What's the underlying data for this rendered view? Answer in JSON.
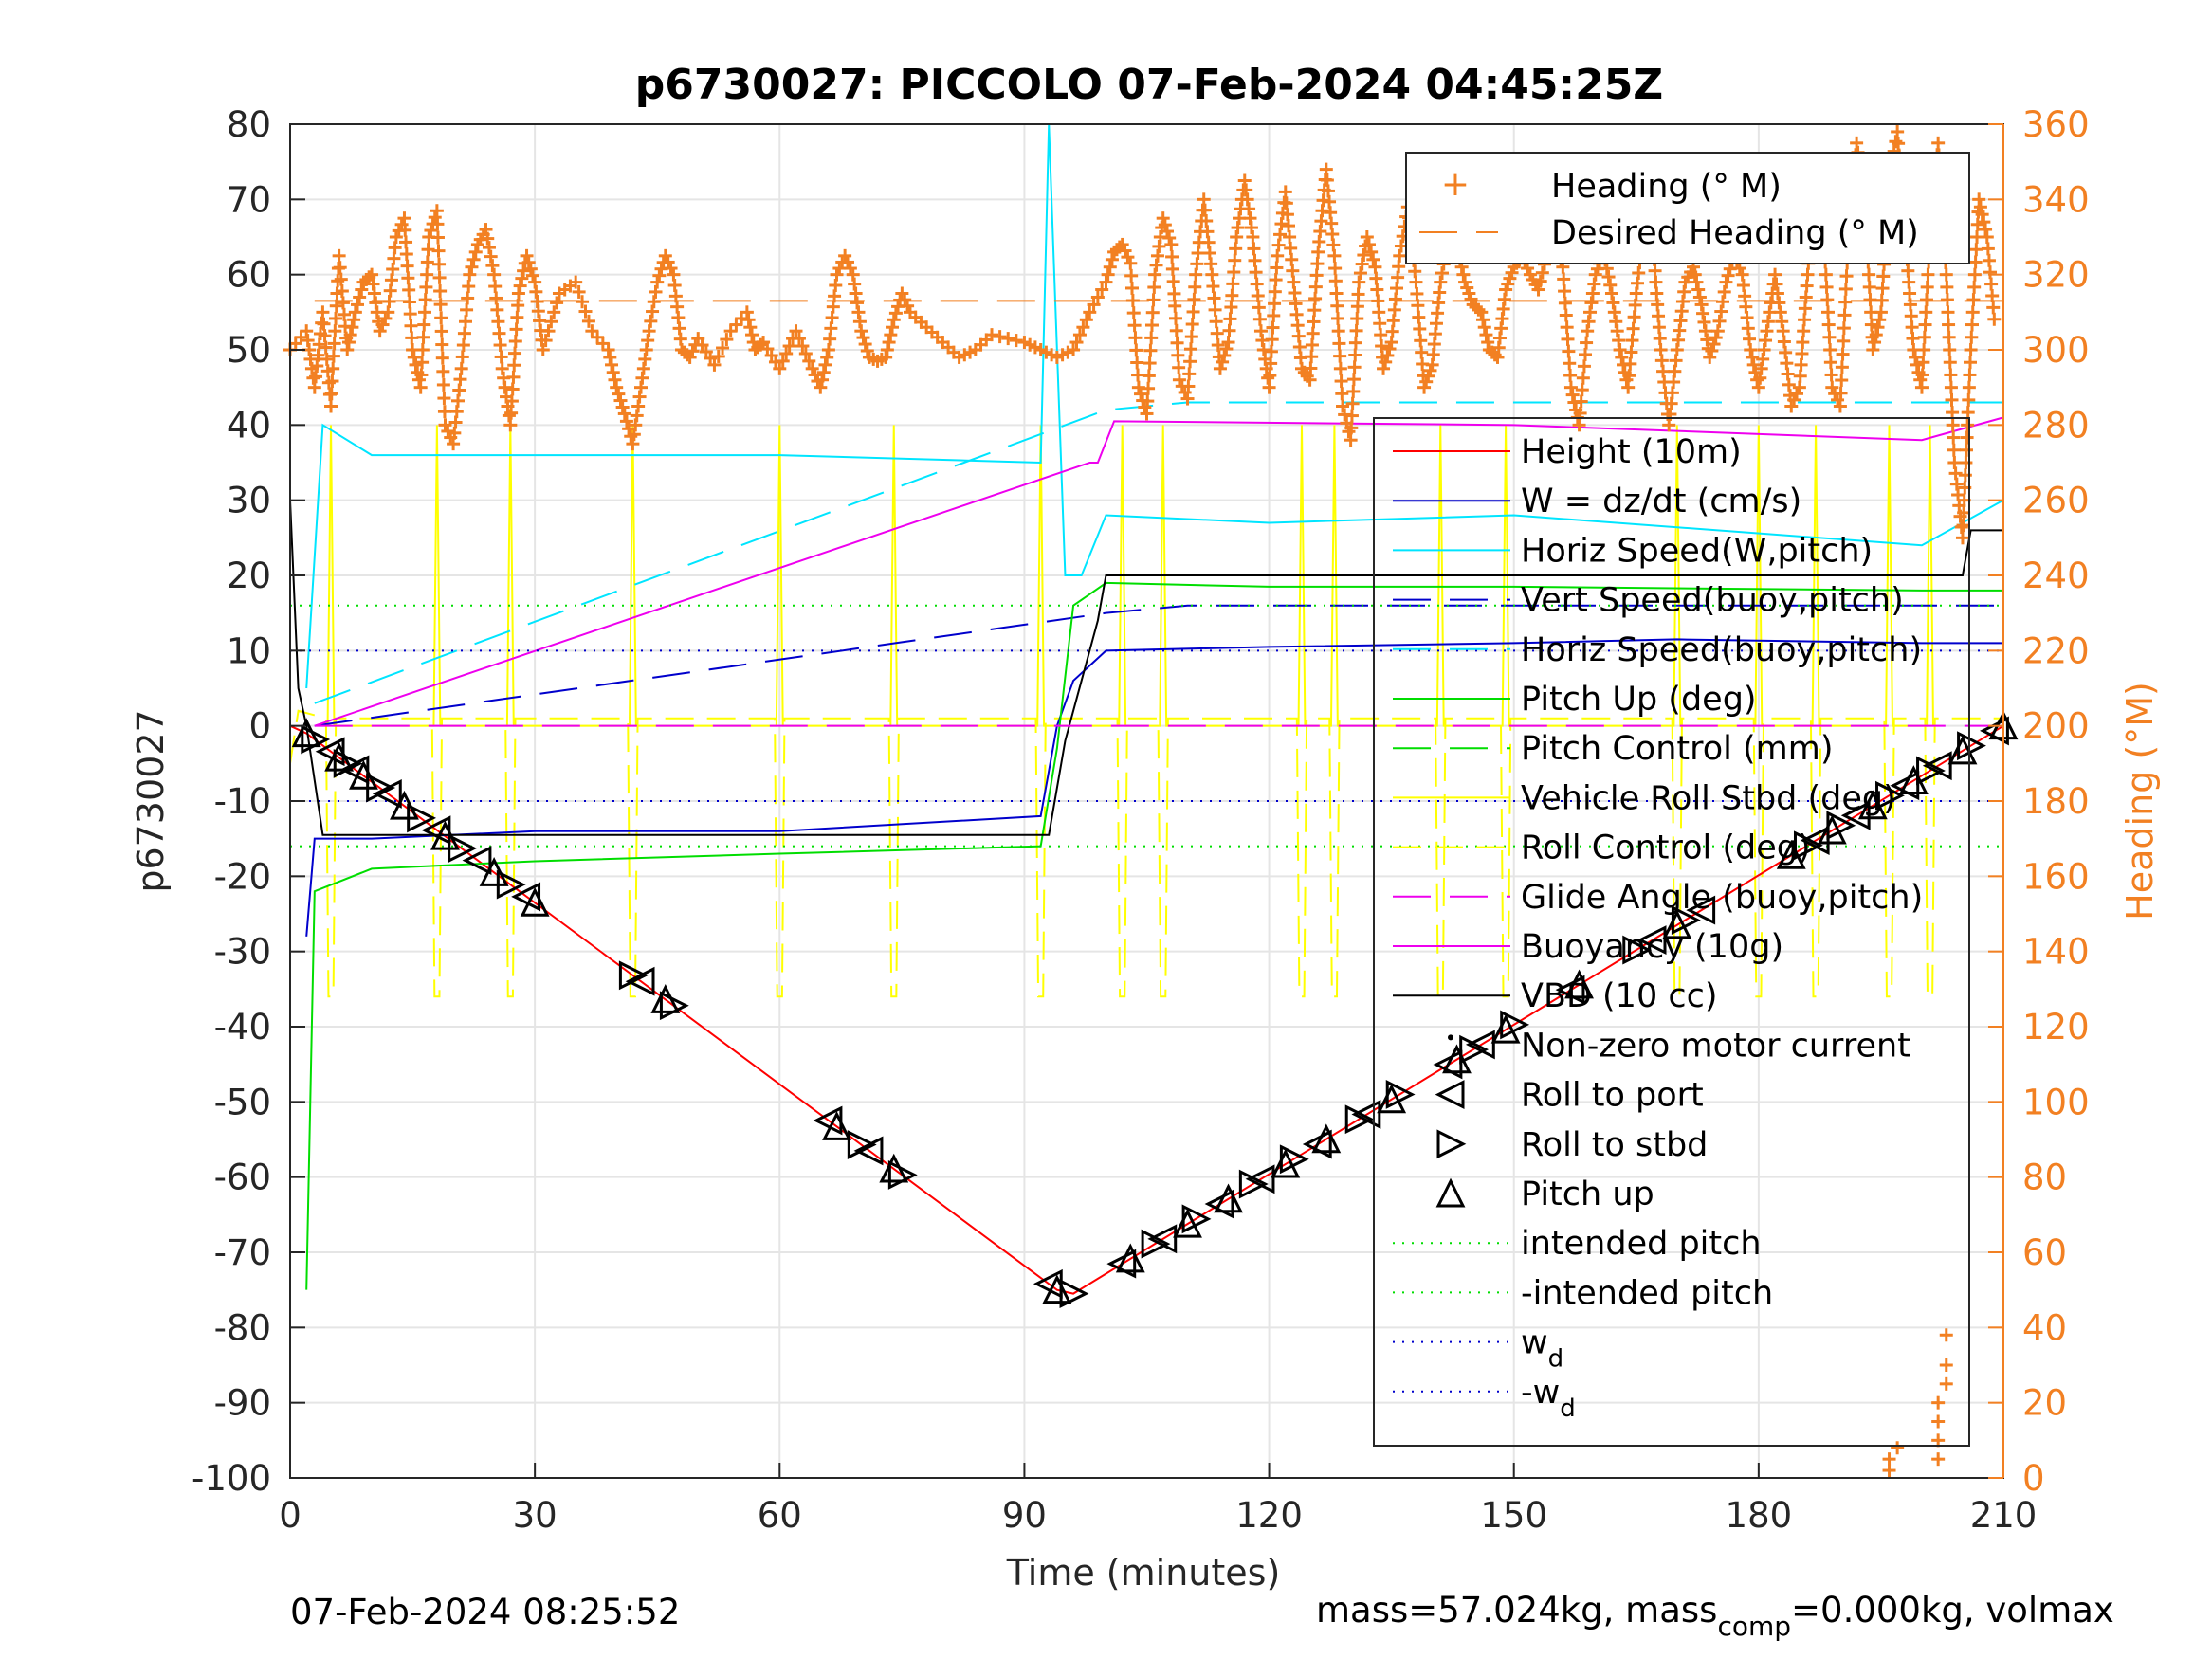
{
  "chart_data": {
    "type": "line",
    "title": "p6730027: PICCOLO 07-Feb-2024 04:45:25Z",
    "xlabel": "Time (minutes)",
    "ylabel": "p6730027",
    "y2label": "Heading (°M)",
    "xlim": [
      0,
      210
    ],
    "ylim": [
      -100,
      80
    ],
    "y2lim": [
      0,
      360
    ],
    "xticks": [
      "0",
      "30",
      "60",
      "90",
      "120",
      "150",
      "180",
      "210"
    ],
    "yticks": [
      "80",
      "70",
      "60",
      "50",
      "40",
      "30",
      "20",
      "10",
      "0",
      "-10",
      "-20",
      "-30",
      "-40",
      "-50",
      "-60",
      "-70",
      "-80",
      "-90",
      "-100"
    ],
    "y2ticks": [
      "360",
      "340",
      "320",
      "300",
      "280",
      "260",
      "240",
      "220",
      "200",
      "180",
      "160",
      "140",
      "120",
      "100",
      "80",
      "60",
      "40",
      "20",
      "0"
    ],
    "grid": true,
    "legend_heading": [
      "Heading (° M)",
      "Desired Heading (° M)"
    ],
    "legend_main": [
      "Height (10m)",
      "W = dz/dt (cm/s)",
      "Horiz Speed(W,pitch)",
      "Vert Speed(buoy,pitch)",
      "Horiz Speed(buoy,pitch)",
      "Pitch Up (deg)",
      "Pitch Control (mm)",
      "Vehicle Roll Stbd (deg)",
      "Roll Control (deg)",
      "Glide Angle (buoy,pitch)",
      "Buoyancy (10g)",
      "VBD (10 cc)",
      "Non-zero motor current",
      "Roll to port",
      "Roll to stbd",
      "Pitch up",
      "intended pitch",
      "-intended pitch",
      "w_d",
      "-w_d"
    ],
    "series": [
      {
        "name": "Height (10m)",
        "color": "#ff0000",
        "x": [
          0,
          2,
          94,
          96,
          210
        ],
        "y": [
          0,
          -1,
          -75,
          -75.5,
          0
        ]
      },
      {
        "name": "W = dz/dt (cm/s)",
        "color": "#0000cc",
        "x": [
          2,
          3,
          10,
          30,
          60,
          92,
          94,
          96,
          100,
          120,
          150,
          170,
          200,
          210
        ],
        "y": [
          -28,
          -15,
          -15,
          -14,
          -14,
          -12,
          0,
          6,
          10,
          10.5,
          11,
          11.5,
          11,
          11
        ]
      },
      {
        "name": "Horiz Speed(W,pitch)",
        "color": "#00e5ff",
        "x": [
          2,
          4,
          10,
          30,
          60,
          92,
          93,
          95,
          97,
          100,
          120,
          150,
          200,
          210
        ],
        "y": [
          5,
          40,
          36,
          36,
          36,
          35,
          80,
          20,
          20,
          28,
          27,
          28,
          24,
          30
        ]
      },
      {
        "name": "Vert Speed(buoy,pitch)",
        "color": "#0000cc",
        "dash": "40,20",
        "x": [
          3,
          100,
          110,
          150,
          205,
          210
        ],
        "y": [
          0,
          15,
          16,
          16,
          16,
          16
        ]
      },
      {
        "name": "Horiz Speed(buoy,pitch)",
        "color": "#00e5ff",
        "dash": "40,20",
        "x": [
          3,
          100,
          110,
          150,
          205,
          210
        ],
        "y": [
          3,
          42,
          43,
          43,
          43,
          43
        ]
      },
      {
        "name": "Pitch Up (deg)",
        "color": "#00dd00",
        "x": [
          2,
          3,
          10,
          30,
          60,
          92,
          94,
          96,
          100,
          120,
          150,
          200,
          210
        ],
        "y": [
          -75,
          -22,
          -19,
          -18,
          -17,
          -16,
          -3,
          16,
          19,
          18.5,
          18.5,
          18,
          18
        ]
      },
      {
        "name": "Buoyancy (10g)",
        "color": "#ee00ee",
        "x": [
          3,
          98,
          99,
          101,
          150,
          200,
          210
        ],
        "y": [
          0,
          35,
          35,
          40.5,
          40,
          38,
          41
        ]
      },
      {
        "name": "VBD (10 cc)",
        "color": "#000000",
        "x": [
          0,
          1,
          2,
          4,
          90,
          93,
          95,
          99,
          100,
          170,
          205,
          206,
          210
        ],
        "y": [
          30,
          5,
          0,
          -14.5,
          -14.5,
          -14.5,
          -2,
          14,
          20,
          20,
          20,
          26,
          26
        ]
      },
      {
        "name": "Glide Angle (buoy,pitch)",
        "color": "#ee00ee",
        "dash": "40,20",
        "x": [
          3,
          210
        ],
        "y": [
          0,
          0
        ]
      },
      {
        "name": "intended pitch",
        "color": "#00dd00",
        "dash": "2,8",
        "x": [
          0,
          210
        ],
        "y": [
          16,
          16
        ]
      },
      {
        "name": "-intended pitch",
        "color": "#00dd00",
        "dash": "2,8",
        "x": [
          0,
          210
        ],
        "y": [
          -16,
          -16
        ]
      },
      {
        "name": "w_d",
        "color": "#0000cc",
        "dash": "2,8",
        "x": [
          0,
          210
        ],
        "y": [
          10,
          10
        ]
      },
      {
        "name": "-w_d",
        "color": "#0000cc",
        "dash": "2,8",
        "x": [
          0,
          210
        ],
        "y": [
          -10,
          -10
        ]
      }
    ],
    "pitch_markers_x": [
      2,
      3,
      5,
      6,
      7,
      8,
      9,
      11,
      12,
      14,
      16,
      18,
      19,
      21,
      23,
      25,
      27,
      29,
      30,
      42,
      43,
      46,
      47,
      66,
      67,
      70,
      71,
      74,
      75,
      93,
      94,
      96,
      102,
      103,
      106,
      107,
      110,
      111,
      114,
      115,
      118,
      119,
      122,
      123,
      126,
      127,
      131,
      132,
      135,
      136,
      142,
      143,
      145,
      146,
      149,
      150,
      157,
      158,
      165,
      167,
      170,
      171,
      173,
      184,
      186,
      187,
      189,
      190,
      192,
      194,
      196,
      198,
      199,
      201,
      202,
      205,
      206,
      209,
      210
    ],
    "roll_control_dips_x": [
      5,
      18,
      27,
      42,
      60,
      74,
      92,
      102,
      107,
      124,
      128,
      141,
      149,
      170,
      180,
      187,
      196,
      201
    ],
    "heading_deg": [
      [
        0,
        300
      ],
      [
        2,
        305
      ],
      [
        3,
        290
      ],
      [
        4,
        310
      ],
      [
        5,
        285
      ],
      [
        6,
        325
      ],
      [
        7,
        300
      ],
      [
        8,
        310
      ],
      [
        9,
        318
      ],
      [
        10,
        320
      ],
      [
        11,
        305
      ],
      [
        12,
        310
      ],
      [
        13,
        330
      ],
      [
        14,
        335
      ],
      [
        15,
        300
      ],
      [
        16,
        290
      ],
      [
        17,
        330
      ],
      [
        18,
        337
      ],
      [
        19,
        280
      ],
      [
        20,
        275
      ],
      [
        21,
        295
      ],
      [
        22,
        320
      ],
      [
        23,
        328
      ],
      [
        24,
        332
      ],
      [
        25,
        320
      ],
      [
        26,
        295
      ],
      [
        27,
        280
      ],
      [
        28,
        315
      ],
      [
        29,
        325
      ],
      [
        30,
        318
      ],
      [
        31,
        300
      ],
      [
        33,
        315
      ],
      [
        35,
        318
      ],
      [
        37,
        305
      ],
      [
        39,
        300
      ],
      [
        40,
        290
      ],
      [
        41,
        283
      ],
      [
        42,
        275
      ],
      [
        43,
        290
      ],
      [
        44,
        305
      ],
      [
        45,
        318
      ],
      [
        46,
        325
      ],
      [
        47,
        320
      ],
      [
        48,
        300
      ],
      [
        49,
        298
      ],
      [
        50,
        303
      ],
      [
        52,
        296
      ],
      [
        54,
        305
      ],
      [
        56,
        310
      ],
      [
        57,
        300
      ],
      [
        58,
        302
      ],
      [
        60,
        295
      ],
      [
        62,
        305
      ],
      [
        64,
        295
      ],
      [
        65,
        290
      ],
      [
        66,
        300
      ],
      [
        67,
        320
      ],
      [
        68,
        325
      ],
      [
        69,
        320
      ],
      [
        70,
        305
      ],
      [
        71,
        298
      ],
      [
        72,
        297
      ],
      [
        73,
        298
      ],
      [
        74,
        308
      ],
      [
        75,
        315
      ],
      [
        76,
        310
      ],
      [
        78,
        306
      ],
      [
        80,
        302
      ],
      [
        82,
        298
      ],
      [
        84,
        300
      ],
      [
        86,
        304
      ],
      [
        88,
        303
      ],
      [
        90,
        302
      ],
      [
        92,
        300
      ],
      [
        94,
        298
      ],
      [
        96,
        300
      ],
      [
        98,
        310
      ],
      [
        100,
        318
      ],
      [
        101,
        326
      ],
      [
        102,
        328
      ],
      [
        103,
        323
      ],
      [
        104,
        290
      ],
      [
        105,
        283
      ],
      [
        106,
        320
      ],
      [
        107,
        335
      ],
      [
        108,
        328
      ],
      [
        109,
        292
      ],
      [
        110,
        287
      ],
      [
        111,
        320
      ],
      [
        112,
        340
      ],
      [
        113,
        320
      ],
      [
        114,
        295
      ],
      [
        115,
        302
      ],
      [
        116,
        330
      ],
      [
        117,
        345
      ],
      [
        118,
        330
      ],
      [
        119,
        305
      ],
      [
        120,
        290
      ],
      [
        121,
        325
      ],
      [
        122,
        342
      ],
      [
        123,
        318
      ],
      [
        124,
        295
      ],
      [
        125,
        292
      ],
      [
        126,
        326
      ],
      [
        127,
        348
      ],
      [
        128,
        325
      ],
      [
        129,
        285
      ],
      [
        130,
        276
      ],
      [
        131,
        318
      ],
      [
        132,
        330
      ],
      [
        133,
        322
      ],
      [
        134,
        295
      ],
      [
        135,
        302
      ],
      [
        136,
        325
      ],
      [
        137,
        338
      ],
      [
        138,
        318
      ],
      [
        139,
        290
      ],
      [
        140,
        296
      ],
      [
        141,
        318
      ],
      [
        142,
        330
      ],
      [
        143,
        328
      ],
      [
        144,
        318
      ],
      [
        145,
        312
      ],
      [
        146,
        310
      ],
      [
        147,
        300
      ],
      [
        148,
        298
      ],
      [
        149,
        316
      ],
      [
        150,
        322
      ],
      [
        151,
        325
      ],
      [
        152,
        320
      ],
      [
        153,
        316
      ],
      [
        154,
        325
      ],
      [
        155,
        330
      ],
      [
        156,
        322
      ],
      [
        157,
        290
      ],
      [
        158,
        280
      ],
      [
        159,
        305
      ],
      [
        160,
        320
      ],
      [
        161,
        326
      ],
      [
        162,
        315
      ],
      [
        163,
        300
      ],
      [
        164,
        290
      ],
      [
        165,
        315
      ],
      [
        166,
        334
      ],
      [
        167,
        330
      ],
      [
        168,
        300
      ],
      [
        169,
        280
      ],
      [
        170,
        300
      ],
      [
        171,
        318
      ],
      [
        172,
        322
      ],
      [
        173,
        312
      ],
      [
        174,
        298
      ],
      [
        175,
        305
      ],
      [
        176,
        318
      ],
      [
        177,
        325
      ],
      [
        178,
        320
      ],
      [
        179,
        300
      ],
      [
        180,
        290
      ],
      [
        181,
        305
      ],
      [
        182,
        320
      ],
      [
        183,
        305
      ],
      [
        184,
        285
      ],
      [
        185,
        290
      ],
      [
        186,
        320
      ],
      [
        187,
        350
      ],
      [
        188,
        330
      ],
      [
        189,
        290
      ],
      [
        190,
        285
      ],
      [
        191,
        330
      ],
      [
        192,
        355
      ],
      [
        193,
        340
      ],
      [
        194,
        300
      ],
      [
        195,
        310
      ],
      [
        196,
        345
      ],
      [
        197,
        358
      ],
      [
        198,
        330
      ],
      [
        199,
        300
      ],
      [
        200,
        290
      ],
      [
        201,
        330
      ],
      [
        202,
        355
      ],
      [
        203,
        320
      ],
      [
        204,
        270
      ],
      [
        205,
        250
      ],
      [
        206,
        300
      ],
      [
        207,
        340
      ],
      [
        208,
        330
      ],
      [
        209,
        305
      ]
    ],
    "heading_low_deg": [
      [
        196,
        2
      ],
      [
        196,
        5
      ],
      [
        197,
        8
      ],
      [
        202,
        10
      ],
      [
        202,
        20
      ],
      [
        203,
        30
      ],
      [
        203,
        38
      ],
      [
        202,
        15
      ],
      [
        203,
        25
      ],
      [
        202,
        5
      ]
    ],
    "desired_heading_deg": 313
  },
  "footer": {
    "left": "07-Feb-2024 08:25:52",
    "right_prefix": "mass=57.024kg, mass",
    "right_sub": "comp",
    "right_suffix": "=0.000kg, volmax"
  },
  "colors": {
    "axes": "#262626",
    "grid": "#e5e5e5",
    "heading": "#f28022",
    "roll_control": "#ffff00"
  }
}
